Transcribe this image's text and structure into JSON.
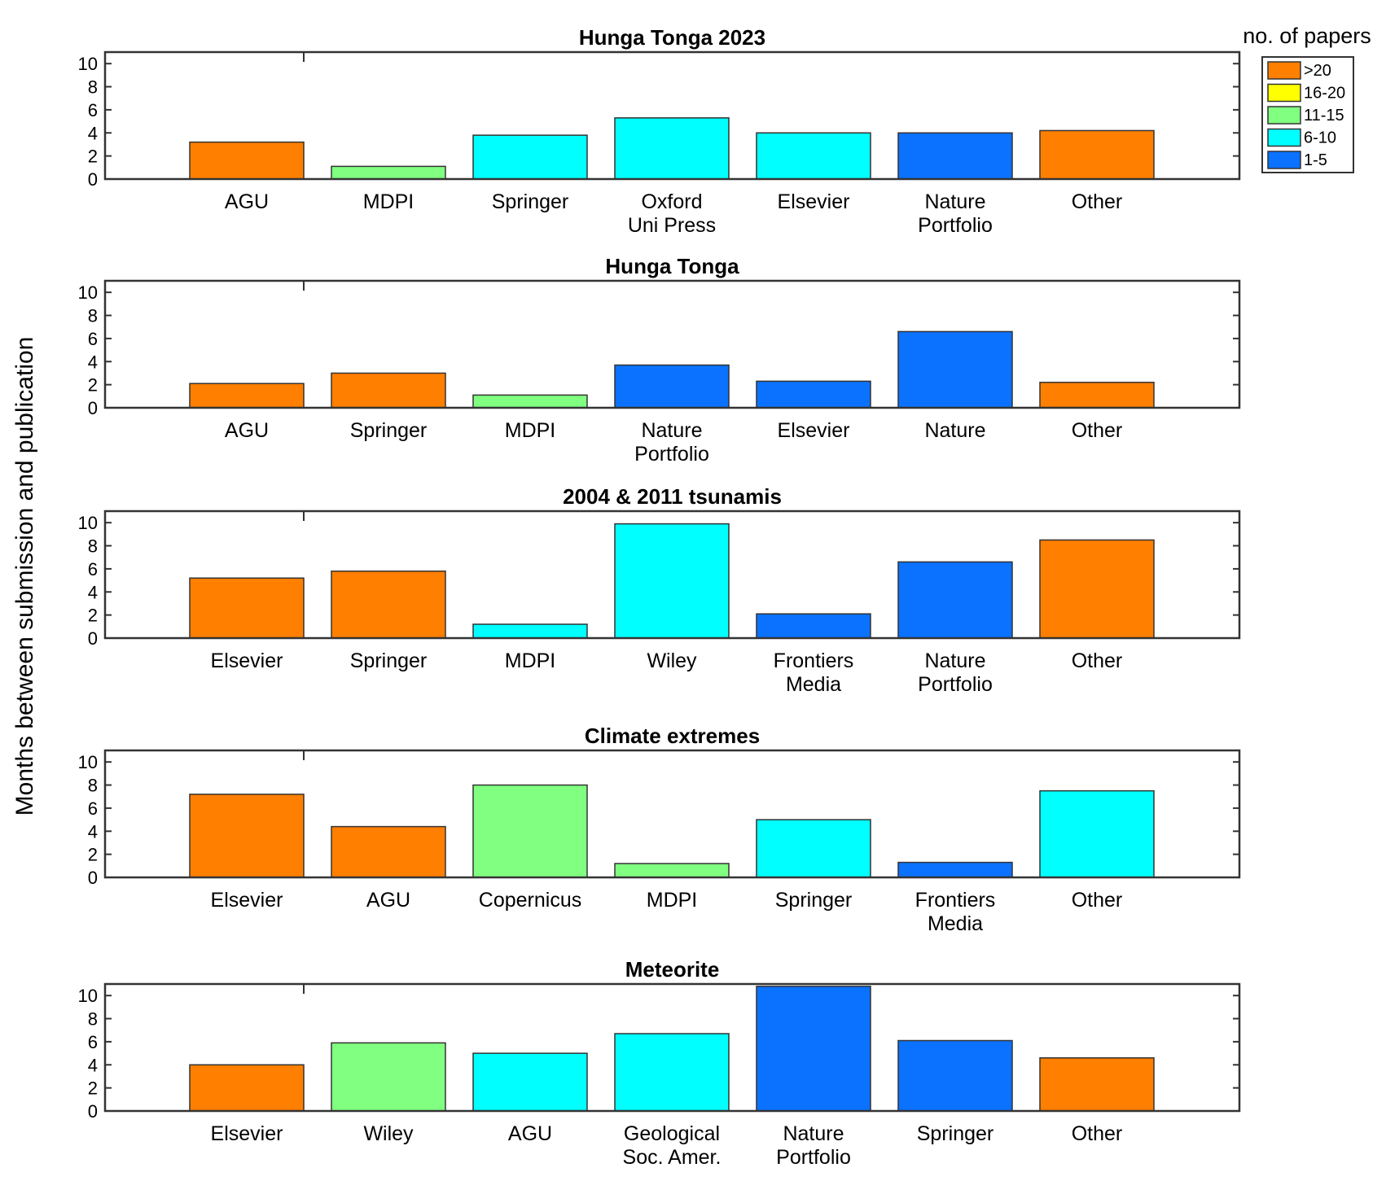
{
  "figure": {
    "ylabel": "Months between submission and publication",
    "legend": {
      "title": "no. of papers",
      "entries": [
        {
          "label": ">20",
          "color": "#FF7F00"
        },
        {
          "label": "16-20",
          "color": "#FFFF00"
        },
        {
          "label": "11-15",
          "color": "#80FF80"
        },
        {
          "label": "6-10",
          "color": "#00FFFF"
        },
        {
          "label": "1-5",
          "color": "#0A72FF"
        }
      ]
    }
  },
  "chart_data": [
    {
      "type": "bar",
      "title": "Hunga Tonga 2023",
      "categories": [
        "AGU",
        "MDPI",
        "Springer",
        "Oxford\nUni Press",
        "Elsevier",
        "Nature\nPortfolio",
        "Other"
      ],
      "values": [
        3.2,
        1.1,
        3.8,
        5.3,
        4.0,
        4.0,
        4.2
      ],
      "paper_count_group": [
        ">20",
        "11-15",
        "6-10",
        "6-10",
        "6-10",
        "1-5",
        ">20"
      ],
      "ylim": [
        0,
        11
      ],
      "yticks": [
        0,
        2,
        4,
        6,
        8,
        10
      ]
    },
    {
      "type": "bar",
      "title": "Hunga Tonga",
      "categories": [
        "AGU",
        "Springer",
        "MDPI",
        "Nature\nPortfolio",
        "Elsevier",
        "Nature",
        "Other"
      ],
      "values": [
        2.1,
        3.0,
        1.1,
        3.7,
        2.3,
        6.6,
        2.2
      ],
      "paper_count_group": [
        ">20",
        ">20",
        "11-15",
        "1-5",
        "1-5",
        "1-5",
        ">20"
      ],
      "ylim": [
        0,
        11
      ],
      "yticks": [
        0,
        2,
        4,
        6,
        8,
        10
      ]
    },
    {
      "type": "bar",
      "title": "2004 & 2011 tsunamis",
      "categories": [
        "Elsevier",
        "Springer",
        "MDPI",
        "Wiley",
        "Frontiers\nMedia",
        "Nature\nPortfolio",
        "Other"
      ],
      "values": [
        5.2,
        5.8,
        1.2,
        9.9,
        2.1,
        6.6,
        8.5
      ],
      "paper_count_group": [
        ">20",
        ">20",
        "6-10",
        "6-10",
        "1-5",
        "1-5",
        ">20"
      ],
      "ylim": [
        0,
        11
      ],
      "yticks": [
        0,
        2,
        4,
        6,
        8,
        10
      ]
    },
    {
      "type": "bar",
      "title": "Climate extremes",
      "categories": [
        "Elsevier",
        "AGU",
        "Copernicus",
        "MDPI",
        "Springer",
        "Frontiers\nMedia",
        "Other"
      ],
      "values": [
        7.2,
        4.4,
        8.0,
        1.2,
        5.0,
        1.3,
        7.5
      ],
      "paper_count_group": [
        ">20",
        ">20",
        "11-15",
        "11-15",
        "6-10",
        "1-5",
        "6-10"
      ],
      "ylim": [
        0,
        11
      ],
      "yticks": [
        0,
        2,
        4,
        6,
        8,
        10
      ]
    },
    {
      "type": "bar",
      "title": "Meteorite",
      "categories": [
        "Elsevier",
        "Wiley",
        "AGU",
        "Geological\nSoc. Amer.",
        "Nature\nPortfolio",
        "Springer",
        "Other"
      ],
      "values": [
        4.0,
        5.9,
        5.0,
        6.7,
        10.8,
        6.1,
        4.6
      ],
      "paper_count_group": [
        ">20",
        "11-15",
        "6-10",
        "6-10",
        "1-5",
        "1-5",
        ">20"
      ],
      "ylim": [
        0,
        11
      ],
      "yticks": [
        0,
        2,
        4,
        6,
        8,
        10
      ]
    }
  ]
}
